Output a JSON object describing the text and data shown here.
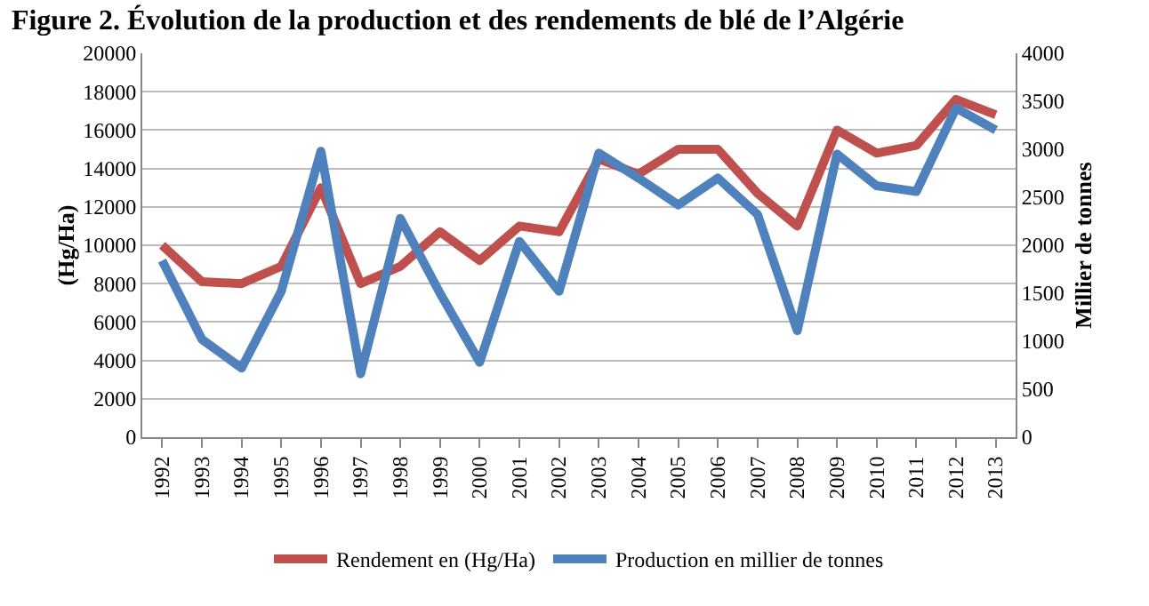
{
  "chart_data": {
    "type": "line",
    "title": "Figure 2. Évolution de la production et des rendements de blé de l’Algérie",
    "ylabel": "(Hg/Ha)",
    "y2label": "Millier de tonnes",
    "categories": [
      "1992",
      "1993",
      "1994",
      "1995",
      "1996",
      "1997",
      "1998",
      "1999",
      "2000",
      "2001",
      "2002",
      "2003",
      "2004",
      "2005",
      "2006",
      "2007",
      "2008",
      "2009",
      "2010",
      "2011",
      "2012",
      "2013"
    ],
    "series": [
      {
        "name": "Rendement en (Hg/Ha)",
        "color": "#c0504d",
        "values": [
          10000,
          8100,
          8000,
          8900,
          13000,
          8000,
          8900,
          10700,
          9200,
          11000,
          10700,
          14500,
          13700,
          15000,
          15000,
          12700,
          11000,
          16000,
          14800,
          15200,
          17600,
          16800
        ]
      },
      {
        "name": "Production en millier de tonnes",
        "color": "#4f81bd",
        "axis": "y2",
        "values": [
          1840,
          1020,
          720,
          1520,
          2980,
          660,
          2280,
          1500,
          780,
          2040,
          1520,
          2960,
          2700,
          2420,
          2700,
          2320,
          1110,
          2950,
          2620,
          2560,
          3430,
          3200
        ]
      }
    ],
    "ylim": [
      0,
      20000
    ],
    "yticks": [
      0,
      2000,
      4000,
      6000,
      8000,
      10000,
      12000,
      14000,
      16000,
      18000,
      20000
    ],
    "y2lim": [
      0,
      4000
    ],
    "y2ticks": [
      0,
      500,
      1000,
      1500,
      2000,
      2500,
      3000,
      3500,
      4000
    ],
    "grid": "y",
    "legend": "bottom",
    "marker": "none",
    "line_style": "solid"
  }
}
